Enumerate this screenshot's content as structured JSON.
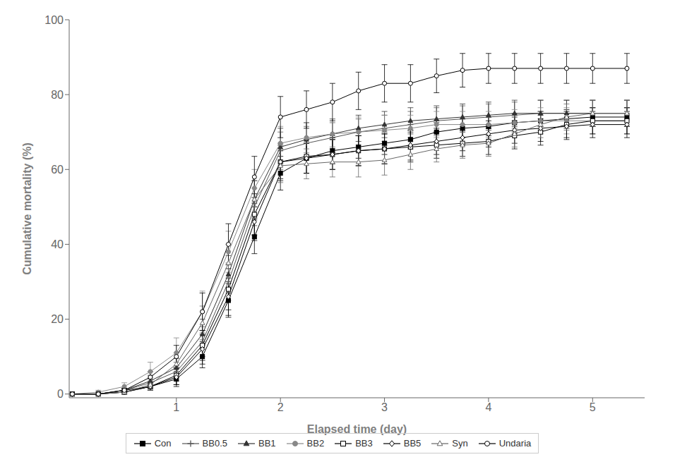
{
  "chart_data": {
    "type": "line",
    "xlabel": "Elapsed time (day)",
    "ylabel": "Cumulative mortality (%)",
    "xlim": [
      -0.03,
      5.5
    ],
    "ylim": [
      -1,
      100
    ],
    "xticks": [
      1,
      2,
      3,
      4,
      5
    ],
    "yticks": [
      0,
      20,
      40,
      60,
      80,
      100
    ],
    "grid": false,
    "legend": "bottom",
    "x": [
      0.0,
      0.25,
      0.5,
      0.75,
      1.0,
      1.25,
      1.5,
      1.75,
      2.0,
      2.25,
      2.5,
      2.75,
      3.0,
      3.25,
      3.5,
      3.75,
      4.0,
      4.25,
      4.5,
      4.75,
      5.0,
      5.33
    ],
    "series": [
      {
        "name": "Con",
        "color": "#000000",
        "marker": "square",
        "line_style": "solid",
        "values": [
          0.0,
          0.0,
          1.0,
          2.0,
          4.0,
          10.0,
          25.0,
          42.0,
          59.0,
          63.0,
          65.0,
          66.0,
          67.0,
          68.0,
          70.0,
          71.0,
          71.5,
          72.5,
          73.0,
          73.5,
          74.0,
          74.0
        ],
        "errors": [
          0.0,
          0.0,
          0.5,
          1.0,
          1.5,
          3.0,
          4.5,
          4.5,
          4.5,
          4.0,
          3.5,
          3.0,
          3.0,
          2.5,
          2.5,
          2.5,
          2.5,
          2.5,
          2.5,
          2.5,
          2.5,
          2.5
        ]
      },
      {
        "name": "BB0.5",
        "color": "#555555",
        "marker": "plus",
        "line_style": "solid",
        "values": [
          0.0,
          0.0,
          1.0,
          3.0,
          6.0,
          14.0,
          30.0,
          50.0,
          65.0,
          67.0,
          68.5,
          70.0,
          71.0,
          72.0,
          73.0,
          73.5,
          74.0,
          74.5,
          75.0,
          75.0,
          75.0,
          75.0
        ],
        "errors": [
          0.0,
          0.0,
          0.5,
          1.5,
          2.5,
          4.0,
          5.0,
          5.0,
          5.0,
          4.5,
          4.0,
          3.5,
          3.5,
          3.5,
          3.5,
          3.5,
          3.5,
          3.5,
          3.5,
          3.5,
          3.5,
          3.5
        ]
      },
      {
        "name": "BB1",
        "color": "#333333",
        "marker": "triangle",
        "line_style": "solid",
        "values": [
          0.0,
          0.0,
          1.0,
          3.5,
          7.0,
          16.0,
          32.0,
          52.0,
          66.0,
          68.0,
          69.5,
          71.0,
          72.0,
          73.0,
          73.5,
          74.0,
          74.5,
          75.0,
          75.0,
          75.0,
          75.0,
          75.0
        ],
        "errors": [
          0.0,
          0.0,
          0.5,
          1.5,
          2.5,
          4.0,
          5.0,
          5.0,
          5.0,
          4.5,
          4.0,
          3.5,
          3.5,
          3.5,
          3.5,
          3.5,
          3.5,
          3.5,
          3.5,
          3.5,
          3.5,
          3.5
        ]
      },
      {
        "name": "BB2",
        "color": "#888888",
        "marker": "circle",
        "line_style": "solid",
        "values": [
          0.0,
          0.5,
          2.0,
          6.0,
          11.0,
          22.0,
          38.0,
          55.0,
          67.0,
          68.5,
          69.5,
          70.0,
          70.5,
          71.0,
          72.0,
          72.0,
          72.0,
          72.5,
          73.0,
          73.0,
          73.0,
          73.0
        ],
        "errors": [
          0.0,
          0.5,
          1.0,
          2.5,
          4.0,
          5.5,
          5.5,
          5.0,
          4.5,
          4.0,
          4.0,
          4.0,
          4.0,
          3.5,
          3.5,
          3.5,
          3.5,
          3.5,
          3.5,
          3.5,
          3.5,
          3.5
        ]
      },
      {
        "name": "BB3",
        "color": "#000000",
        "marker": "open-square",
        "line_style": "solid",
        "values": [
          0.0,
          0.0,
          0.5,
          2.0,
          5.0,
          13.0,
          28.0,
          48.0,
          62.0,
          63.5,
          64.0,
          65.0,
          65.5,
          66.0,
          66.5,
          67.0,
          67.5,
          69.0,
          70.0,
          72.0,
          73.0,
          73.0
        ],
        "errors": [
          0.0,
          0.0,
          0.5,
          1.0,
          2.5,
          4.0,
          5.5,
          5.5,
          5.0,
          4.5,
          4.0,
          4.0,
          4.0,
          4.0,
          3.5,
          3.5,
          3.5,
          3.5,
          3.5,
          3.5,
          3.5,
          3.5
        ]
      },
      {
        "name": "BB5",
        "color": "#000000",
        "marker": "open-diamond",
        "line_style": "solid",
        "values": [
          0.0,
          0.0,
          0.5,
          2.0,
          4.5,
          12.0,
          26.0,
          46.0,
          62.0,
          63.0,
          64.0,
          65.0,
          65.5,
          66.5,
          67.5,
          68.5,
          69.5,
          70.5,
          71.0,
          71.5,
          72.0,
          72.0
        ],
        "errors": [
          0.0,
          0.0,
          0.5,
          1.0,
          2.5,
          4.0,
          5.0,
          5.0,
          4.5,
          4.0,
          4.0,
          4.0,
          4.0,
          4.0,
          3.5,
          3.5,
          3.5,
          3.5,
          3.5,
          3.5,
          3.5,
          3.5
        ]
      },
      {
        "name": "Syn",
        "color": "#666666",
        "marker": "open-triangle",
        "line_style": "solid",
        "values": [
          0.0,
          0.0,
          0.5,
          2.5,
          8.0,
          19.0,
          35.0,
          52.0,
          61.0,
          61.5,
          62.0,
          62.0,
          62.5,
          64.0,
          65.5,
          66.5,
          67.0,
          69.5,
          72.0,
          74.0,
          75.0,
          75.0
        ],
        "errors": [
          0.0,
          0.0,
          0.5,
          1.5,
          3.0,
          4.5,
          5.0,
          5.0,
          4.5,
          4.0,
          4.0,
          4.0,
          4.0,
          4.0,
          3.5,
          3.5,
          3.5,
          3.5,
          3.5,
          3.5,
          3.5,
          3.5
        ]
      },
      {
        "name": "Undaria",
        "color": "#000000",
        "marker": "open-circle",
        "line_style": "solid",
        "values": [
          0.0,
          0.0,
          1.0,
          4.5,
          10.0,
          22.0,
          40.0,
          58.0,
          74.0,
          76.0,
          78.0,
          81.0,
          83.0,
          83.0,
          85.0,
          86.5,
          87.0,
          87.0,
          87.0,
          87.0,
          87.0,
          87.0
        ],
        "errors": [
          0.0,
          0.0,
          0.5,
          1.5,
          3.0,
          5.0,
          5.5,
          5.5,
          5.5,
          5.0,
          5.0,
          5.0,
          5.0,
          5.0,
          4.5,
          4.5,
          4.0,
          4.0,
          4.0,
          4.0,
          4.0,
          4.0
        ]
      }
    ]
  }
}
